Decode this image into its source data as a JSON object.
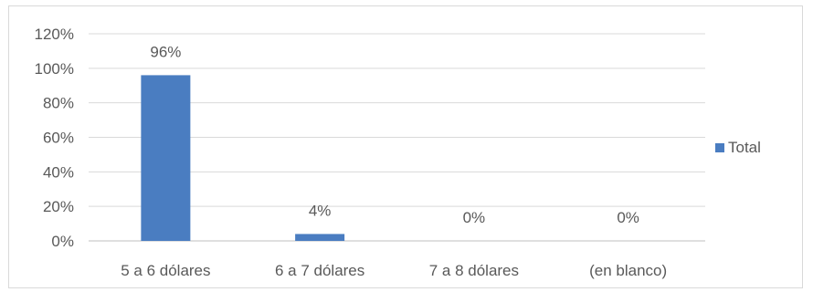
{
  "chart_data": {
    "type": "bar",
    "categories": [
      "5 a 6 dólares",
      "6 a 7 dólares",
      "7 a 8 dólares",
      "(en blanco)"
    ],
    "series": [
      {
        "name": "Total",
        "values": [
          0.96,
          0.04,
          0.0,
          0.0
        ]
      }
    ],
    "data_labels": [
      "96%",
      "4%",
      "0%",
      "0%"
    ],
    "y_ticks": [
      "0%",
      "20%",
      "40%",
      "60%",
      "80%",
      "100%",
      "120%"
    ],
    "ylim": [
      0,
      1.2
    ],
    "grid": true,
    "legend_position": "right",
    "colors": {
      "bar": "#4a7dc1",
      "grid": "#d9d9d9",
      "text": "#595959"
    }
  }
}
